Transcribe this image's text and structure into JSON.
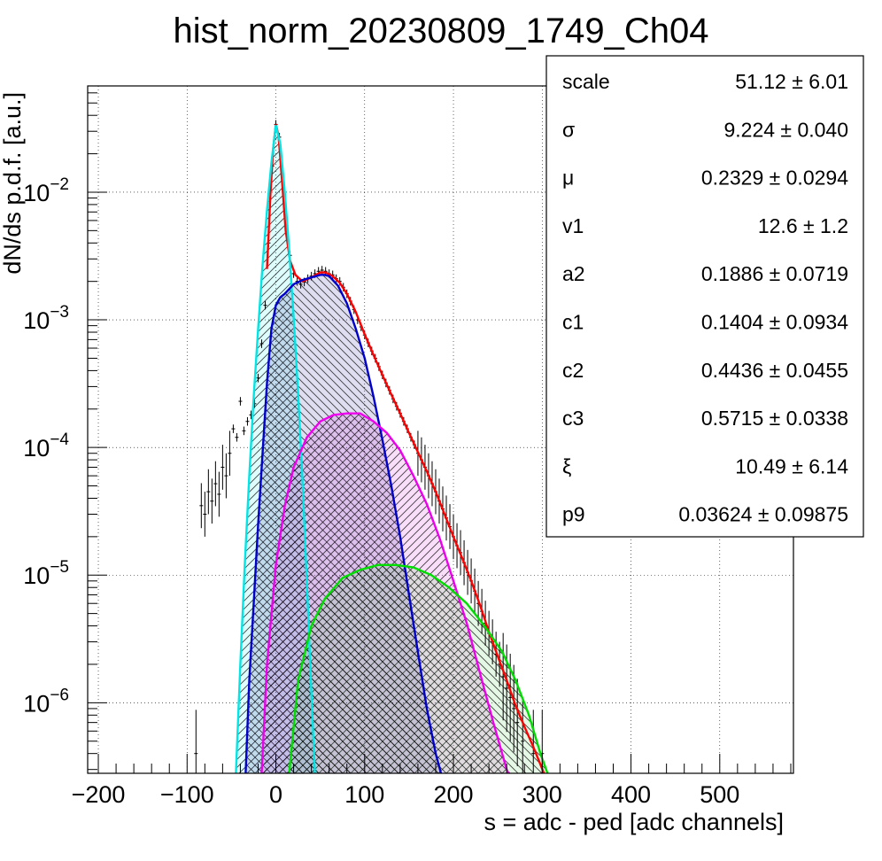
{
  "chart_data": {
    "type": "histogram",
    "title": "hist_norm_20230809_1749_Ch04",
    "xlabel": "s = adc - ped [adc channels]",
    "ylabel": "dN/ds p.d.f. [a.u.]",
    "xlim": [
      -212,
      583
    ],
    "ylim": [
      2.8e-07,
      0.068
    ],
    "yscale": "log",
    "grid": true,
    "x_ticks": [
      {
        "value": -200,
        "label": "−200"
      },
      {
        "value": -100,
        "label": "−100"
      },
      {
        "value": 0,
        "label": "0"
      },
      {
        "value": 100,
        "label": "100"
      },
      {
        "value": 200,
        "label": "200"
      },
      {
        "value": 300,
        "label": "300"
      },
      {
        "value": 400,
        "label": "400"
      },
      {
        "value": 500,
        "label": "500"
      }
    ],
    "y_ticks": [
      {
        "value": 0.01,
        "base": "10",
        "exp": "−2"
      },
      {
        "value": 0.001,
        "base": "10",
        "exp": "−3"
      },
      {
        "value": 0.0001,
        "base": "10",
        "exp": "−4"
      },
      {
        "value": 1e-05,
        "base": "10",
        "exp": "−5"
      },
      {
        "value": 1e-06,
        "base": "10",
        "exp": "−6"
      }
    ],
    "histogram": {
      "color": "#000000",
      "points": [
        [
          -90,
          4e-07
        ],
        [
          -84,
          3.5e-05
        ],
        [
          -80,
          3e-05
        ],
        [
          -76,
          4.5e-05
        ],
        [
          -72,
          3.8e-05
        ],
        [
          -68,
          5.2e-05
        ],
        [
          -64,
          4.3e-05
        ],
        [
          -60,
          7e-05
        ],
        [
          -56,
          6e-05
        ],
        [
          -52,
          9e-05
        ],
        [
          -48,
          0.00014
        ],
        [
          -44,
          0.00012
        ],
        [
          -40,
          0.00023
        ],
        [
          -36,
          0.000135
        ],
        [
          -32,
          0.00016
        ],
        [
          -28,
          0.00018
        ],
        [
          -24,
          0.00022
        ],
        [
          -20,
          0.00035
        ],
        [
          -16,
          0.00065
        ],
        [
          -12,
          0.0013
        ],
        [
          -8,
          0.004
        ],
        [
          -4,
          0.016
        ],
        [
          0,
          0.034
        ],
        [
          4,
          0.027
        ],
        [
          8,
          0.012
        ],
        [
          12,
          0.0055
        ],
        [
          16,
          0.0032
        ],
        [
          20,
          0.0023
        ],
        [
          24,
          0.002
        ],
        [
          28,
          0.0019
        ],
        [
          32,
          0.00198
        ],
        [
          36,
          0.0021
        ],
        [
          40,
          0.0022
        ],
        [
          44,
          0.0023
        ],
        [
          48,
          0.0024
        ],
        [
          52,
          0.00245
        ],
        [
          56,
          0.0024
        ],
        [
          60,
          0.0023
        ],
        [
          64,
          0.00225
        ],
        [
          68,
          0.0021
        ],
        [
          72,
          0.002
        ],
        [
          76,
          0.0018
        ],
        [
          80,
          0.0016
        ],
        [
          84,
          0.0014
        ],
        [
          88,
          0.0012
        ],
        [
          92,
          0.001
        ],
        [
          96,
          0.00088
        ],
        [
          100,
          0.00076
        ],
        [
          104,
          0.00066
        ],
        [
          108,
          0.00057
        ],
        [
          112,
          0.0005
        ],
        [
          116,
          0.00043
        ],
        [
          120,
          0.00037
        ],
        [
          124,
          0.00032
        ],
        [
          128,
          0.00028
        ],
        [
          132,
          0.00024
        ],
        [
          136,
          0.00021
        ],
        [
          140,
          0.000185
        ],
        [
          144,
          0.00016
        ],
        [
          148,
          0.00014
        ],
        [
          152,
          0.00012
        ],
        [
          156,
          0.000105
        ],
        [
          160,
          9e-05
        ],
        [
          164,
          8e-05
        ],
        [
          168,
          7e-05
        ],
        [
          172,
          6e-05
        ],
        [
          176,
          5.2e-05
        ],
        [
          180,
          4.5e-05
        ],
        [
          184,
          3.8e-05
        ],
        [
          188,
          3.3e-05
        ],
        [
          192,
          2.8e-05
        ],
        [
          196,
          2.4e-05
        ],
        [
          200,
          2e-05
        ],
        [
          204,
          1.7e-05
        ],
        [
          208,
          1.5e-05
        ],
        [
          212,
          1.25e-05
        ],
        [
          216,
          1.05e-05
        ],
        [
          220,
          9e-06
        ],
        [
          224,
          7.5e-06
        ],
        [
          228,
          6e-06
        ],
        [
          232,
          5.2e-06
        ],
        [
          236,
          4.2e-06
        ],
        [
          240,
          3.5e-06
        ],
        [
          244,
          3e-06
        ],
        [
          248,
          2.4e-06
        ],
        [
          252,
          2e-06
        ],
        [
          256,
          1.6e-06
        ],
        [
          260,
          1.3e-06
        ],
        [
          264,
          1.1e-06
        ],
        [
          268,
          9e-07
        ],
        [
          272,
          7e-07
        ],
        [
          278,
          5e-07
        ],
        [
          290,
          4e-07
        ],
        [
          300,
          4e-07
        ]
      ]
    },
    "series": [
      {
        "color": "#ff0000",
        "fill": "none",
        "points": [
          [
            -10,
            0.0025
          ],
          [
            -6,
            0.01
          ],
          [
            -3,
            0.022
          ],
          [
            0,
            0.034
          ],
          [
            3,
            0.028
          ],
          [
            7,
            0.012
          ],
          [
            11,
            0.005
          ],
          [
            16,
            0.0029
          ],
          [
            22,
            0.00225
          ],
          [
            30,
            0.002
          ],
          [
            40,
            0.00215
          ],
          [
            50,
            0.00235
          ],
          [
            56,
            0.00235
          ],
          [
            64,
            0.0022
          ],
          [
            72,
            0.00195
          ],
          [
            80,
            0.0016
          ],
          [
            90,
            0.00115
          ],
          [
            100,
            0.00077
          ],
          [
            110,
            0.00053
          ],
          [
            120,
            0.00037
          ],
          [
            130,
            0.00026
          ],
          [
            140,
            0.000185
          ],
          [
            150,
            0.00013
          ],
          [
            160,
            9.2e-05
          ],
          [
            170,
            6.5e-05
          ],
          [
            180,
            4.5e-05
          ],
          [
            190,
            3e-05
          ],
          [
            200,
            2e-05
          ],
          [
            210,
            1.35e-05
          ],
          [
            220,
            9e-06
          ],
          [
            230,
            5.8e-06
          ],
          [
            240,
            3.6e-06
          ],
          [
            250,
            2.3e-06
          ],
          [
            260,
            1.5e-06
          ],
          [
            270,
            9.5e-07
          ],
          [
            280,
            6.5e-07
          ],
          [
            290,
            4.5e-07
          ],
          [
            302,
            2.8e-07
          ]
        ]
      },
      {
        "color": "#00e5e5",
        "fill": "#00e5e5",
        "points": [
          [
            -45,
            2.8e-07
          ],
          [
            -40,
            2e-06
          ],
          [
            -35,
            1.2e-05
          ],
          [
            -30,
            6e-05
          ],
          [
            -25,
            0.00025
          ],
          [
            -20,
            0.00085
          ],
          [
            -15,
            0.0027
          ],
          [
            -10,
            0.0072
          ],
          [
            -5,
            0.017
          ],
          [
            0,
            0.0335
          ],
          [
            5,
            0.024
          ],
          [
            10,
            0.01
          ],
          [
            15,
            0.0035
          ],
          [
            20,
            0.00105
          ],
          [
            25,
            0.00027
          ],
          [
            30,
            5.5e-05
          ],
          [
            35,
            8.5e-06
          ],
          [
            40,
            1.2e-06
          ],
          [
            44,
            2.8e-07
          ]
        ]
      },
      {
        "color": "#0000cc",
        "fill": "#00008b",
        "points": [
          [
            -34,
            2.8e-07
          ],
          [
            -30,
            1.5e-06
          ],
          [
            -25,
            6e-06
          ],
          [
            -20,
            2.5e-05
          ],
          [
            -15,
            9e-05
          ],
          [
            -10,
            0.00032
          ],
          [
            -5,
            0.00085
          ],
          [
            0,
            0.0013
          ],
          [
            5,
            0.0015
          ],
          [
            10,
            0.0016
          ],
          [
            20,
            0.0019
          ],
          [
            30,
            0.00205
          ],
          [
            40,
            0.00215
          ],
          [
            50,
            0.00225
          ],
          [
            55,
            0.00225
          ],
          [
            60,
            0.0022
          ],
          [
            70,
            0.00185
          ],
          [
            80,
            0.00135
          ],
          [
            90,
            0.00085
          ],
          [
            100,
            0.0005
          ],
          [
            110,
            0.00025
          ],
          [
            120,
            0.000115
          ],
          [
            130,
            5e-05
          ],
          [
            140,
            2e-05
          ],
          [
            150,
            7e-06
          ],
          [
            160,
            2.5e-06
          ],
          [
            170,
            9e-07
          ],
          [
            180,
            4e-07
          ],
          [
            186,
            2.8e-07
          ]
        ]
      },
      {
        "color": "#ee00ee",
        "fill": "#cc00cc",
        "points": [
          [
            -16,
            2.8e-07
          ],
          [
            -10,
            2e-06
          ],
          [
            0,
            1.2e-05
          ],
          [
            10,
            3.5e-05
          ],
          [
            20,
            7e-05
          ],
          [
            35,
            0.00012
          ],
          [
            50,
            0.00016
          ],
          [
            65,
            0.00018
          ],
          [
            80,
            0.000185
          ],
          [
            95,
            0.000185
          ],
          [
            110,
            0.00016
          ],
          [
            125,
            0.00013
          ],
          [
            140,
            9.5e-05
          ],
          [
            155,
            6e-05
          ],
          [
            170,
            3.6e-05
          ],
          [
            185,
            1.9e-05
          ],
          [
            200,
            9e-06
          ],
          [
            215,
            4.2e-06
          ],
          [
            230,
            1.7e-06
          ],
          [
            245,
            7e-07
          ],
          [
            260,
            3e-07
          ],
          [
            262,
            2.8e-07
          ]
        ]
      },
      {
        "color": "#00dd00",
        "fill": "#33cc33",
        "points": [
          [
            15,
            2.8e-07
          ],
          [
            25,
            1.5e-06
          ],
          [
            40,
            4e-06
          ],
          [
            55,
            6.5e-06
          ],
          [
            75,
            9.5e-06
          ],
          [
            95,
            1.1e-05
          ],
          [
            115,
            1.2e-05
          ],
          [
            135,
            1.2e-05
          ],
          [
            155,
            1.15e-05
          ],
          [
            175,
            1e-05
          ],
          [
            195,
            8e-06
          ],
          [
            215,
            6e-06
          ],
          [
            235,
            4e-06
          ],
          [
            255,
            2.5e-06
          ],
          [
            270,
            1.5e-06
          ],
          [
            285,
            8e-07
          ],
          [
            298,
            4e-07
          ],
          [
            306,
            2.8e-07
          ]
        ]
      }
    ],
    "stats": [
      {
        "name": "scale",
        "value": "51.12 ± 6.01"
      },
      {
        "name": "σ",
        "value": "9.224 ± 0.040"
      },
      {
        "name": "μ",
        "value": "0.2329 ± 0.0294"
      },
      {
        "name": "v1",
        "value": "12.6 ± 1.2"
      },
      {
        "name": "a2",
        "value": "0.1886 ± 0.0719"
      },
      {
        "name": "c1",
        "value": "0.1404 ± 0.0934"
      },
      {
        "name": "c2",
        "value": "0.4436 ± 0.0455"
      },
      {
        "name": "c3",
        "value": "0.5715 ± 0.0338"
      },
      {
        "name": "ξ",
        "value": "10.49 ± 6.14"
      },
      {
        "name": "p9",
        "value": "0.03624 ± 0.09875"
      }
    ]
  }
}
